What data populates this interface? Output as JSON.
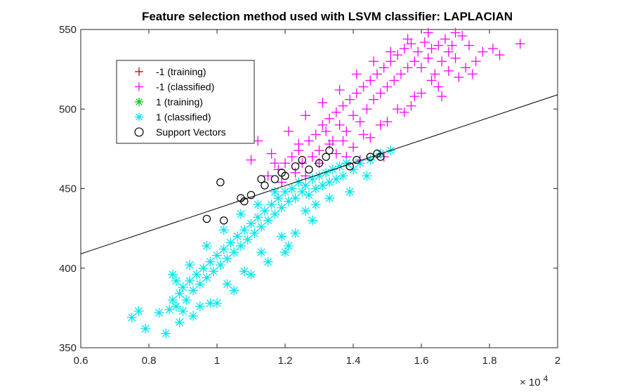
{
  "chart_data": {
    "type": "scatter",
    "title": "Feature selection method used with LSVM classifier: LAPLACIAN",
    "xlabel": "",
    "ylabel": "",
    "x_exponent_label": "× 10",
    "x_exponent_power": "4",
    "xlim": [
      6000,
      20000
    ],
    "ylim": [
      350,
      550
    ],
    "x_ticks": [
      6000,
      8000,
      10000,
      12000,
      14000,
      16000,
      18000,
      20000
    ],
    "x_tick_labels": [
      "0.6",
      "0.8",
      "1",
      "1.2",
      "1.4",
      "1.6",
      "1.8",
      "2"
    ],
    "y_ticks": [
      350,
      400,
      450,
      500,
      550
    ],
    "y_tick_labels": [
      "350",
      "400",
      "450",
      "500",
      "550"
    ],
    "grid": false,
    "legend_position": "top-left",
    "legend": [
      {
        "label": "-1 (training)",
        "marker": "plus",
        "color": "#cc0000"
      },
      {
        "label": "-1 (classified)",
        "marker": "plus",
        "color": "#ff00ff"
      },
      {
        "label": "1 (training)",
        "marker": "asterisk",
        "color": "#00cc00"
      },
      {
        "label": "1 (classified)",
        "marker": "asterisk",
        "color": "#00e5ee"
      },
      {
        "label": "Support Vectors",
        "marker": "circle",
        "color": "#000000"
      }
    ],
    "decision_boundary": {
      "x": [
        6000,
        20000
      ],
      "y": [
        409,
        509
      ],
      "color": "#000000"
    },
    "series": [
      {
        "name": "-1 (classified)",
        "marker": "plus",
        "color": "#ff00ff",
        "points": [
          [
            11500,
            458
          ],
          [
            11800,
            462
          ],
          [
            12000,
            466
          ],
          [
            12200,
            470
          ],
          [
            12400,
            474
          ],
          [
            12500,
            466
          ],
          [
            12700,
            480
          ],
          [
            12900,
            484
          ],
          [
            13000,
            474
          ],
          [
            13100,
            490
          ],
          [
            13200,
            486
          ],
          [
            13300,
            494
          ],
          [
            13400,
            480
          ],
          [
            13500,
            498
          ],
          [
            13600,
            490
          ],
          [
            13700,
            502
          ],
          [
            13800,
            486
          ],
          [
            13900,
            506
          ],
          [
            14000,
            496
          ],
          [
            14100,
            510
          ],
          [
            14200,
            492
          ],
          [
            14300,
            514
          ],
          [
            14400,
            500
          ],
          [
            14500,
            518
          ],
          [
            14600,
            506
          ],
          [
            14700,
            522
          ],
          [
            14800,
            510
          ],
          [
            14900,
            526
          ],
          [
            15000,
            514
          ],
          [
            15100,
            530
          ],
          [
            15200,
            518
          ],
          [
            15300,
            534
          ],
          [
            15400,
            522
          ],
          [
            15500,
            538
          ],
          [
            15600,
            526
          ],
          [
            15700,
            541
          ],
          [
            15800,
            530
          ],
          [
            15900,
            536
          ],
          [
            16000,
            526
          ],
          [
            16100,
            542
          ],
          [
            16200,
            532
          ],
          [
            16300,
            538
          ],
          [
            16400,
            522
          ],
          [
            16500,
            540
          ],
          [
            16600,
            530
          ],
          [
            16700,
            544
          ],
          [
            16800,
            536
          ],
          [
            17000,
            548
          ],
          [
            17200,
            546
          ],
          [
            17400,
            540
          ],
          [
            17600,
            530
          ],
          [
            17800,
            536
          ],
          [
            18100,
            538
          ],
          [
            18300,
            534
          ],
          [
            18900,
            541
          ],
          [
            11000,
            468
          ],
          [
            10800,
            490
          ],
          [
            11200,
            480
          ],
          [
            11600,
            472
          ],
          [
            12100,
            486
          ],
          [
            12600,
            496
          ],
          [
            13100,
            504
          ],
          [
            13600,
            512
          ],
          [
            14100,
            522
          ],
          [
            14600,
            530
          ],
          [
            15100,
            536
          ],
          [
            15600,
            544
          ],
          [
            16200,
            548
          ],
          [
            12800,
            470
          ],
          [
            13300,
            478
          ],
          [
            13800,
            470
          ],
          [
            14300,
            484
          ],
          [
            14800,
            490
          ],
          [
            15300,
            500
          ],
          [
            15800,
            508
          ],
          [
            16300,
            518
          ],
          [
            16800,
            524
          ],
          [
            17100,
            520
          ],
          [
            14000,
            476
          ],
          [
            14500,
            482
          ],
          [
            15000,
            492
          ],
          [
            15500,
            498
          ],
          [
            16000,
            510
          ],
          [
            16500,
            514
          ],
          [
            17000,
            532
          ],
          [
            13000,
            466
          ],
          [
            13500,
            472
          ],
          [
            12300,
            460
          ],
          [
            11900,
            454
          ],
          [
            12600,
            458
          ],
          [
            15700,
            502
          ],
          [
            16600,
            508
          ],
          [
            17300,
            526
          ],
          [
            14900,
            470
          ],
          [
            14200,
            468
          ],
          [
            13700,
            480
          ],
          [
            12400,
            478
          ],
          [
            11700,
            466
          ],
          [
            16900,
            540
          ],
          [
            17500,
            522
          ]
        ]
      },
      {
        "name": "1 (classified)",
        "marker": "asterisk",
        "color": "#00e5ee",
        "points": [
          [
            7500,
            369
          ],
          [
            7700,
            373
          ],
          [
            7900,
            362
          ],
          [
            8300,
            372
          ],
          [
            8500,
            359
          ],
          [
            8600,
            374
          ],
          [
            8700,
            380
          ],
          [
            8800,
            376
          ],
          [
            8900,
            384
          ],
          [
            9000,
            388
          ],
          [
            9100,
            380
          ],
          [
            9200,
            392
          ],
          [
            9300,
            386
          ],
          [
            9400,
            396
          ],
          [
            9500,
            390
          ],
          [
            9600,
            400
          ],
          [
            9700,
            394
          ],
          [
            9800,
            404
          ],
          [
            9900,
            398
          ],
          [
            10000,
            408
          ],
          [
            10100,
            402
          ],
          [
            10200,
            412
          ],
          [
            10300,
            406
          ],
          [
            10400,
            416
          ],
          [
            10500,
            410
          ],
          [
            10600,
            420
          ],
          [
            10700,
            414
          ],
          [
            10800,
            424
          ],
          [
            10900,
            418
          ],
          [
            11000,
            428
          ],
          [
            11100,
            422
          ],
          [
            11200,
            432
          ],
          [
            11300,
            426
          ],
          [
            11400,
            436
          ],
          [
            11500,
            430
          ],
          [
            11600,
            440
          ],
          [
            11700,
            434
          ],
          [
            11800,
            444
          ],
          [
            11900,
            438
          ],
          [
            12000,
            448
          ],
          [
            12100,
            442
          ],
          [
            12200,
            450
          ],
          [
            12300,
            444
          ],
          [
            12400,
            454
          ],
          [
            12500,
            448
          ],
          [
            12600,
            452
          ],
          [
            12700,
            446
          ],
          [
            12800,
            456
          ],
          [
            12900,
            450
          ],
          [
            13000,
            458
          ],
          [
            13100,
            452
          ],
          [
            13200,
            460
          ],
          [
            13300,
            454
          ],
          [
            13400,
            462
          ],
          [
            13500,
            456
          ],
          [
            13600,
            464
          ],
          [
            13700,
            458
          ],
          [
            13800,
            466
          ],
          [
            14000,
            462
          ],
          [
            14200,
            466
          ],
          [
            14500,
            468
          ],
          [
            14800,
            472
          ],
          [
            15100,
            474
          ],
          [
            11900,
            420
          ],
          [
            12100,
            414
          ],
          [
            12300,
            422
          ],
          [
            12600,
            436
          ],
          [
            12900,
            440
          ],
          [
            13300,
            444
          ],
          [
            11300,
            410
          ],
          [
            10800,
            398
          ],
          [
            10300,
            390
          ],
          [
            9800,
            378
          ],
          [
            9300,
            370
          ],
          [
            8900,
            366
          ],
          [
            9200,
            402
          ],
          [
            9700,
            414
          ],
          [
            10200,
            424
          ],
          [
            10700,
            434
          ],
          [
            11200,
            440
          ],
          [
            11700,
            448
          ],
          [
            10000,
            378
          ],
          [
            10500,
            386
          ],
          [
            11000,
            396
          ],
          [
            11500,
            404
          ],
          [
            12000,
            410
          ],
          [
            8700,
            396
          ],
          [
            9500,
            376
          ],
          [
            12800,
            430
          ],
          [
            13900,
            448
          ],
          [
            14400,
            458
          ],
          [
            9000,
            373
          ],
          [
            8800,
            392
          ]
        ]
      },
      {
        "name": "Support Vectors",
        "marker": "circle",
        "color": "#000000",
        "points": [
          [
            10100,
            454
          ],
          [
            10700,
            444
          ],
          [
            10800,
            442
          ],
          [
            11000,
            446
          ],
          [
            11300,
            456
          ],
          [
            11400,
            452
          ],
          [
            11700,
            456
          ],
          [
            11900,
            460
          ],
          [
            12000,
            458
          ],
          [
            13000,
            466
          ],
          [
            13200,
            470
          ],
          [
            13900,
            464
          ],
          [
            14100,
            468
          ],
          [
            14500,
            470
          ],
          [
            14700,
            472
          ],
          [
            14800,
            470
          ],
          [
            9700,
            431
          ],
          [
            10200,
            430
          ],
          [
            12300,
            464
          ],
          [
            12700,
            462
          ],
          [
            13300,
            474
          ],
          [
            12500,
            468
          ]
        ]
      }
    ]
  }
}
